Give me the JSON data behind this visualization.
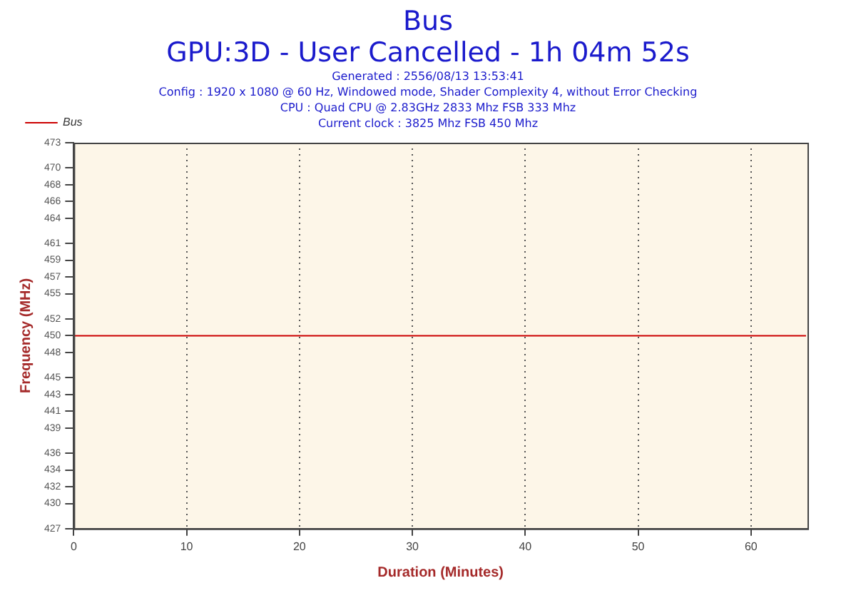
{
  "chart_data": {
    "type": "line",
    "title": "Bus",
    "subtitle": "GPU:3D - User Cancelled - 1h 04m 52s",
    "annotations": [
      "Generated : 2556/08/13 13:53:41",
      "Config : 1920 x 1080 @ 60 Hz, Windowed mode, Shader Complexity 4, without Error Checking",
      "CPU : Quad CPU @ 2.83GHz 2833 Mhz FSB 333 Mhz",
      "Current clock : 3825 Mhz FSB 450 Mhz"
    ],
    "xlabel": "Duration (Minutes)",
    "ylabel": "Frequency (MHz)",
    "series": [
      {
        "name": "Bus",
        "color": "#cc0000",
        "x": [
          0,
          64.87
        ],
        "values": [
          450,
          450
        ]
      }
    ],
    "xlim": [
      0,
      65
    ],
    "xticks": [
      0,
      10,
      20,
      30,
      40,
      50,
      60
    ],
    "ylim": [
      427,
      473
    ],
    "yticks": [
      427,
      430,
      432,
      434,
      436,
      439,
      441,
      443,
      445,
      448,
      450,
      452,
      455,
      457,
      459,
      461,
      464,
      466,
      468,
      470,
      473
    ],
    "grid": "x",
    "legend": "top left",
    "marker": "none",
    "line_style": "solid"
  }
}
